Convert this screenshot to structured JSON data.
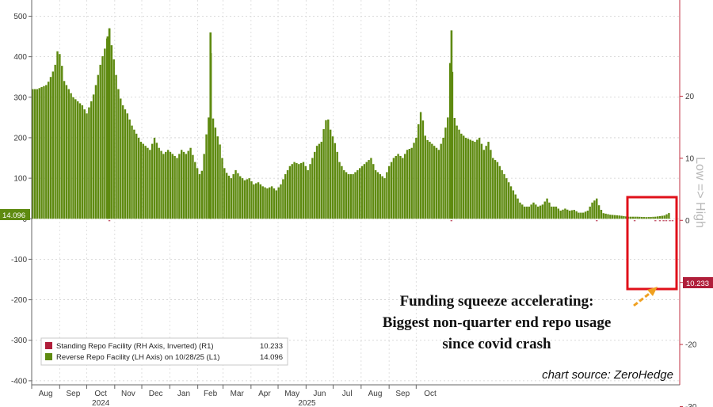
{
  "chart_data": {
    "type": "bar",
    "left_axis": {
      "ylim": [
        -410,
        540
      ],
      "ticks": [
        "500",
        "400",
        "300",
        "200",
        "100",
        "0",
        "-100",
        "-200",
        "-300",
        "-400"
      ]
    },
    "right_axis": {
      "inverted": true,
      "ylim": [
        35.5,
        -26.5
      ],
      "ticks": [
        "-30",
        "-20",
        "-10",
        "0",
        "10",
        "20"
      ],
      "label": "Low => High"
    },
    "x_months": [
      "Aug",
      "Sep",
      "Oct",
      "Nov",
      "Dec",
      "Jan",
      "Feb",
      "Mar",
      "Apr",
      "May",
      "Jun",
      "Jul",
      "Aug",
      "Sep",
      "Oct"
    ],
    "x_years": [
      "2024",
      "2025"
    ],
    "series": [
      {
        "name": "Reverse Repo Facility (LH Axis) on 10/28/25 (L1)",
        "axis": "left",
        "color": "#5e8a10",
        "points": [
          [
            0,
            320
          ],
          [
            5,
            320
          ],
          [
            10,
            325
          ],
          [
            15,
            330
          ],
          [
            18,
            340
          ],
          [
            22,
            360
          ],
          [
            25,
            380
          ],
          [
            28,
            420
          ],
          [
            31,
            400
          ],
          [
            35,
            340
          ],
          [
            40,
            320
          ],
          [
            45,
            300
          ],
          [
            50,
            290
          ],
          [
            55,
            280
          ],
          [
            60,
            260
          ],
          [
            65,
            290
          ],
          [
            68,
            310
          ],
          [
            71,
            340
          ],
          [
            73,
            360
          ],
          [
            76,
            390
          ],
          [
            80,
            420
          ],
          [
            83,
            450
          ],
          [
            85,
            470
          ],
          [
            88,
            420
          ],
          [
            91,
            380
          ],
          [
            94,
            330
          ],
          [
            97,
            300
          ],
          [
            100,
            280
          ],
          [
            105,
            260
          ],
          [
            110,
            230
          ],
          [
            115,
            210
          ],
          [
            120,
            190
          ],
          [
            125,
            180
          ],
          [
            130,
            170
          ],
          [
            135,
            200
          ],
          [
            140,
            175
          ],
          [
            145,
            160
          ],
          [
            150,
            170
          ],
          [
            155,
            160
          ],
          [
            160,
            150
          ],
          [
            165,
            170
          ],
          [
            170,
            160
          ],
          [
            175,
            175
          ],
          [
            180,
            140
          ],
          [
            185,
            110
          ],
          [
            188,
            120
          ],
          [
            192,
            200
          ],
          [
            195,
            250
          ],
          [
            197,
            460
          ],
          [
            199,
            255
          ],
          [
            201,
            240
          ],
          [
            204,
            210
          ],
          [
            207,
            190
          ],
          [
            210,
            150
          ],
          [
            213,
            120
          ],
          [
            216,
            110
          ],
          [
            220,
            100
          ],
          [
            225,
            120
          ],
          [
            230,
            105
          ],
          [
            235,
            95
          ],
          [
            240,
            100
          ],
          [
            245,
            85
          ],
          [
            250,
            90
          ],
          [
            255,
            80
          ],
          [
            260,
            75
          ],
          [
            265,
            80
          ],
          [
            270,
            70
          ],
          [
            275,
            85
          ],
          [
            280,
            110
          ],
          [
            285,
            130
          ],
          [
            290,
            140
          ],
          [
            295,
            135
          ],
          [
            300,
            140
          ],
          [
            305,
            120
          ],
          [
            310,
            150
          ],
          [
            315,
            180
          ],
          [
            320,
            190
          ],
          [
            324,
            240
          ],
          [
            327,
            250
          ],
          [
            330,
            220
          ],
          [
            333,
            200
          ],
          [
            336,
            180
          ],
          [
            340,
            140
          ],
          [
            345,
            120
          ],
          [
            350,
            110
          ],
          [
            355,
            110
          ],
          [
            360,
            120
          ],
          [
            365,
            130
          ],
          [
            370,
            140
          ],
          [
            375,
            150
          ],
          [
            380,
            120
          ],
          [
            385,
            110
          ],
          [
            390,
            100
          ],
          [
            395,
            130
          ],
          [
            400,
            150
          ],
          [
            405,
            160
          ],
          [
            410,
            150
          ],
          [
            415,
            170
          ],
          [
            420,
            175
          ],
          [
            425,
            200
          ],
          [
            428,
            240
          ],
          [
            431,
            275
          ],
          [
            434,
            210
          ],
          [
            437,
            195
          ],
          [
            440,
            190
          ],
          [
            445,
            180
          ],
          [
            450,
            170
          ],
          [
            455,
            200
          ],
          [
            460,
            250
          ],
          [
            464,
            465
          ],
          [
            466,
            260
          ],
          [
            470,
            230
          ],
          [
            475,
            210
          ],
          [
            480,
            200
          ],
          [
            485,
            195
          ],
          [
            490,
            190
          ],
          [
            495,
            200
          ],
          [
            500,
            170
          ],
          [
            505,
            190
          ],
          [
            510,
            150
          ],
          [
            515,
            140
          ],
          [
            520,
            120
          ],
          [
            525,
            100
          ],
          [
            530,
            80
          ],
          [
            535,
            60
          ],
          [
            540,
            40
          ],
          [
            545,
            30
          ],
          [
            550,
            30
          ],
          [
            555,
            40
          ],
          [
            560,
            30
          ],
          [
            565,
            35
          ],
          [
            570,
            50
          ],
          [
            575,
            30
          ],
          [
            580,
            30
          ],
          [
            585,
            20
          ],
          [
            590,
            25
          ],
          [
            595,
            20
          ],
          [
            600,
            22
          ],
          [
            605,
            15
          ],
          [
            610,
            15
          ],
          [
            615,
            20
          ],
          [
            620,
            40
          ],
          [
            625,
            50
          ],
          [
            628,
            30
          ],
          [
            632,
            14
          ],
          [
            640,
            10
          ],
          [
            650,
            8
          ],
          [
            660,
            5
          ],
          [
            670,
            5
          ],
          [
            680,
            4
          ],
          [
            690,
            5
          ],
          [
            700,
            8
          ],
          [
            705,
            14
          ]
        ]
      },
      {
        "name": "Standing Repo Facility (RH Axis, Inverted) (R1)",
        "axis": "right",
        "color": "#b01e3a",
        "points": [
          [
            85,
            2.3
          ],
          [
            464,
            11.2
          ],
          [
            625,
            1.5
          ],
          [
            667,
            5.8
          ],
          [
            690,
            8.5
          ],
          [
            695,
            3.0
          ],
          [
            699,
            1.2
          ],
          [
            702,
            3.0
          ],
          [
            706,
            9.8
          ],
          [
            709,
            10.233
          ]
        ]
      }
    ],
    "legend": {
      "placement": "bottom-left",
      "entries": [
        {
          "label": "Standing Repo Facility (RH Axis, Inverted) (R1)",
          "value": "10.233",
          "color": "#b01e3a"
        },
        {
          "label": "Reverse Repo Facility (LH Axis) on 10/28/25 (L1)",
          "value": "14.096",
          "color": "#5e8a10"
        }
      ]
    },
    "last_value_badges": {
      "left": {
        "text": "14.096",
        "color": "#5e8a10"
      },
      "right": {
        "text": "10.233",
        "color": "#b01e3a"
      }
    },
    "annotation": {
      "lines": [
        "Funding squeeze accelerating:",
        "Biggest non-quarter end repo usage",
        "since covid crash"
      ]
    },
    "source_text": "chart source: ZeroHedge",
    "highlight_box_color": "#e0101a",
    "arrow_color": "#f0a020"
  }
}
